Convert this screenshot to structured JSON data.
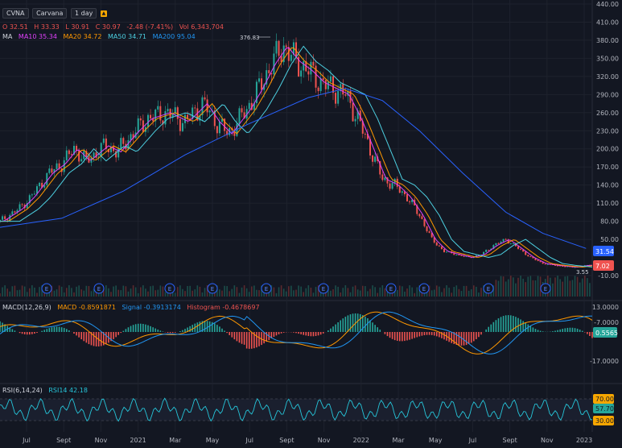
{
  "header": {
    "symbol": "CVNA",
    "name": "Carvana",
    "interval": "1 day",
    "ohlc": {
      "o": "O 32.51",
      "h": "H 33.33",
      "l": "L 30.91",
      "c": "C 30.97",
      "chg": "-2.48 (-7.41%)",
      "vol": "Vol 6,343,704"
    }
  },
  "ma_legend": {
    "label": "MA",
    "ma10": "MA10 35.34",
    "ma20": "MA20 34.72",
    "ma50": "MA50 34.71",
    "ma200": "MA200 95.04"
  },
  "macd_legend": {
    "label": "MACD(12,26,9)",
    "macd": "MACD -0.8591871",
    "signal": "Signal -0.3913174",
    "hist": "Histogram -0.4678697"
  },
  "rsi_legend": {
    "label": "RSI(6,14,24)",
    "rsi14": "RSI14 42.18"
  },
  "colors": {
    "bg": "#131722",
    "up": "#26a69a",
    "down": "#ef5350",
    "ma10": "#e040fb",
    "ma20": "#ff9800",
    "ma50": "#4dd0e1",
    "ma200": "#2962ff",
    "macd": "#ff9800",
    "signal": "#2196f3",
    "rsi": "#26c6da"
  },
  "chart_data": {
    "type": "candlestick",
    "x_labels": [
      "Jul",
      "Sept",
      "Nov",
      "2021",
      "Mar",
      "May",
      "Jul",
      "Sept",
      "Nov",
      "2022",
      "Mar",
      "May",
      "Jul",
      "Sept",
      "Nov",
      "2023"
    ],
    "price_axis": {
      "ticks": [
        440,
        410,
        380,
        350,
        320,
        290,
        260,
        230,
        200,
        170,
        140,
        110,
        80,
        50,
        -10
      ],
      "ylim": [
        -10,
        440
      ]
    },
    "price_labels": {
      "high": "376.83",
      "low": "3.55",
      "ma_value": "31.54",
      "last": "7.02"
    },
    "earnings_markers": [
      "E",
      "E",
      "E",
      "E",
      "E",
      "E",
      "E",
      "E",
      "E",
      "E"
    ],
    "price_series": [
      {
        "x": 0,
        "y": 80
      },
      {
        "x": 3,
        "y": 100
      },
      {
        "x": 5,
        "y": 120
      },
      {
        "x": 8,
        "y": 160
      },
      {
        "x": 10,
        "y": 175
      },
      {
        "x": 12,
        "y": 200
      },
      {
        "x": 14,
        "y": 180
      },
      {
        "x": 17,
        "y": 205
      },
      {
        "x": 19,
        "y": 195
      },
      {
        "x": 22,
        "y": 230
      },
      {
        "x": 24,
        "y": 250
      },
      {
        "x": 27,
        "y": 260
      },
      {
        "x": 30,
        "y": 245
      },
      {
        "x": 33,
        "y": 275
      },
      {
        "x": 35,
        "y": 245
      },
      {
        "x": 37,
        "y": 225
      },
      {
        "x": 40,
        "y": 265
      },
      {
        "x": 42,
        "y": 300
      },
      {
        "x": 44,
        "y": 340
      },
      {
        "x": 46,
        "y": 370
      },
      {
        "x": 48,
        "y": 345
      },
      {
        "x": 50,
        "y": 330
      },
      {
        "x": 52,
        "y": 310
      },
      {
        "x": 54,
        "y": 300
      },
      {
        "x": 56,
        "y": 290
      },
      {
        "x": 58,
        "y": 250
      },
      {
        "x": 60,
        "y": 200
      },
      {
        "x": 62,
        "y": 150
      },
      {
        "x": 64,
        "y": 140
      },
      {
        "x": 66,
        "y": 120
      },
      {
        "x": 68,
        "y": 90
      },
      {
        "x": 70,
        "y": 50
      },
      {
        "x": 72,
        "y": 30
      },
      {
        "x": 74,
        "y": 25
      },
      {
        "x": 76,
        "y": 20
      },
      {
        "x": 78,
        "y": 25
      },
      {
        "x": 80,
        "y": 40
      },
      {
        "x": 82,
        "y": 50
      },
      {
        "x": 84,
        "y": 35
      },
      {
        "x": 86,
        "y": 20
      },
      {
        "x": 88,
        "y": 10
      },
      {
        "x": 90,
        "y": 7
      },
      {
        "x": 93,
        "y": 4
      },
      {
        "x": 95,
        "y": 7
      }
    ],
    "ma200_series": [
      {
        "x": 0,
        "y": 70
      },
      {
        "x": 10,
        "y": 85
      },
      {
        "x": 20,
        "y": 130
      },
      {
        "x": 30,
        "y": 190
      },
      {
        "x": 40,
        "y": 240
      },
      {
        "x": 50,
        "y": 285
      },
      {
        "x": 56,
        "y": 300
      },
      {
        "x": 62,
        "y": 280
      },
      {
        "x": 68,
        "y": 230
      },
      {
        "x": 75,
        "y": 160
      },
      {
        "x": 82,
        "y": 95
      },
      {
        "x": 88,
        "y": 60
      },
      {
        "x": 95,
        "y": 35
      }
    ],
    "macd_axis": {
      "ticks": [
        "13.0000",
        "-7.0000",
        "-17.0000"
      ],
      "last": "0.5565"
    },
    "rsi_axis": {
      "ticks": [
        "70.00",
        "57.70",
        "30.00"
      ]
    }
  }
}
